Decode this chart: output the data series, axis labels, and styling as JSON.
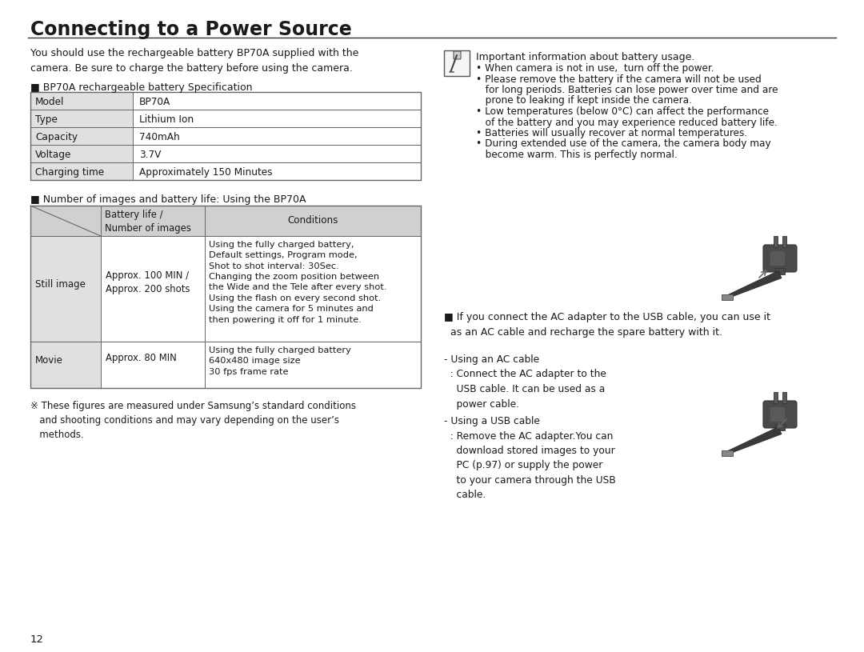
{
  "title": "Connecting to a Power Source",
  "bg_color": "#ffffff",
  "text_color": "#1a1a1a",
  "page_number": "12",
  "intro_text": "You should use the rechargeable battery BP70A supplied with the\ncamera. Be sure to charge the battery before using the camera.",
  "spec_table_title": "■ BP70A rechargeable battery Specification",
  "spec_rows": [
    [
      "Model",
      "BP70A"
    ],
    [
      "Type",
      "Lithium Ion"
    ],
    [
      "Capacity",
      "740mAh"
    ],
    [
      "Voltage",
      "3.7V"
    ],
    [
      "Charging time",
      "Approximately 150 Minutes"
    ]
  ],
  "battery_table_title": "■ Number of images and battery life: Using the BP70A",
  "battery_rows": [
    [
      "Still image",
      "Approx. 100 MIN /\nApprox. 200 shots",
      "Using the fully charged battery,\nDefault settings, Program mode,\nShot to shot interval: 30Sec.\nChanging the zoom position between\nthe Wide and the Tele after every shot.\nUsing the flash on every second shot.\nUsing the camera for 5 minutes and\nthen powering it off for 1 minute."
    ],
    [
      "Movie",
      "Approx. 80 MIN",
      "Using the fully charged battery\n640x480 image size\n30 fps frame rate"
    ]
  ],
  "footnote": "※ These figures are measured under Samsung’s standard conditions\n   and shooting conditions and may vary depending on the user’s\n   methods.",
  "right_note_title": "Important information about battery usage.",
  "right_bullets": [
    "When camera is not in use,  turn off the power.",
    "Please remove the battery if the camera will not be used\n  for long periods. Batteries can lose power over time and are\n  prone to leaking if kept inside the camera.",
    "Low temperatures (below 0°C) can affect the performance\n  of the battery and you may experience reduced battery life.",
    "Batteries will usually recover at normal temperatures.",
    "During extended use of the camera, the camera body may\n  become warm. This is perfectly normal."
  ],
  "ac_note": "■ If you connect the AC adapter to the USB cable, you can use it\n  as an AC cable and recharge the spare battery with it.",
  "ac_cable_label": "- Using an AC cable\n  : Connect the AC adapter to the\n    USB cable. It can be used as a\n    power cable.",
  "usb_cable_label": "- Using a USB cable\n  : Remove the AC adapter.You can\n    download stored images to your\n    PC (p.97) or supply the power\n    to your camera through the USB\n    cable.",
  "table_header_bg": "#d0d0d0",
  "table_row_bg": "#e0e0e0",
  "table_border": "#666666"
}
